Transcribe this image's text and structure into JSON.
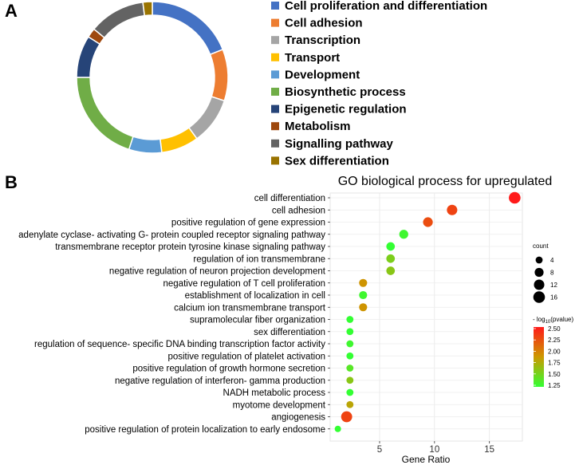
{
  "panel_a": {
    "label": "A"
  },
  "panel_b": {
    "label": "B"
  },
  "chart_data": [
    {
      "type": "pie",
      "variant": "donut",
      "categories": [
        "Cell  proliferation and differentiation",
        "Cell adhesion",
        "Transcription",
        "Transport",
        "Development",
        "Biosynthetic process",
        "Epigenetic regulation",
        "Metabolism",
        "Signalling pathway",
        "Sex differentiation"
      ],
      "values": [
        19,
        11,
        10,
        8,
        7,
        20,
        9,
        2,
        12,
        2
      ],
      "colors": [
        "#4472c4",
        "#ed7d31",
        "#a5a5a5",
        "#ffc000",
        "#5b9bd5",
        "#70ad47",
        "#264478",
        "#9e480e",
        "#636363",
        "#997300"
      ],
      "legend_position": "right"
    },
    {
      "type": "scatter",
      "title": "GO biological process for upregulated",
      "xlabel": "Gene Ratio",
      "ylabel": "",
      "xlim": [
        0.5,
        18
      ],
      "xticks": [
        5,
        10,
        15
      ],
      "grid": true,
      "terms": [
        "cell differentiation",
        "cell adhesion",
        "positive regulation of gene expression",
        "adenylate cyclase- activating G- protein coupled receptor signaling pathway",
        "transmembrane receptor protein tyrosine kinase signaling pathway",
        "regulation of ion transmembrane",
        "negative regulation of neuron projection development",
        "negative regulation of T cell proliferation",
        "establishment of localization in cell",
        "calcium ion transmembrane transport",
        "supramolecular fiber organization",
        "sex differentiation",
        "regulation of sequence- specific DNA binding transcription factor activity",
        "positive regulation of platelet activation",
        "positive regulation of growth hormone secretion",
        "negative regulation of interferon- gamma production",
        "NADH metabolic process",
        "myotome development",
        "angiogenesis",
        "positive regulation of protein localization to early endosome"
      ],
      "gene_ratio": [
        17.3,
        11.6,
        9.4,
        7.2,
        6.0,
        6.0,
        6.0,
        3.5,
        3.5,
        3.5,
        2.3,
        2.3,
        2.3,
        2.3,
        2.3,
        2.3,
        2.3,
        2.3,
        2.0,
        1.2
      ],
      "count": [
        16,
        12,
        10,
        8,
        7,
        7,
        7,
        6,
        6,
        6,
        4,
        4,
        4,
        4,
        4,
        4,
        4,
        4,
        14,
        3
      ],
      "neg_log10_pvalue": [
        2.5,
        2.3,
        2.25,
        1.3,
        1.25,
        1.55,
        1.6,
        1.9,
        1.3,
        1.9,
        1.2,
        1.25,
        1.3,
        1.25,
        1.4,
        1.6,
        1.2,
        1.8,
        2.3,
        1.2
      ],
      "size_legend": {
        "title": "count",
        "values": [
          4,
          8,
          12,
          16
        ]
      },
      "color_legend": {
        "title_prefix": "- log",
        "title_sub": "10",
        "title_suffix": "(pvalue)",
        "ticks": [
          "2.50",
          "2.25",
          "2.00",
          "1.75",
          "1.50",
          "1.25"
        ],
        "range": [
          1.25,
          2.5
        ],
        "low_color": "#33ff33",
        "mid_color": "#cc9900",
        "high_color": "#ff1a1a"
      }
    }
  ]
}
